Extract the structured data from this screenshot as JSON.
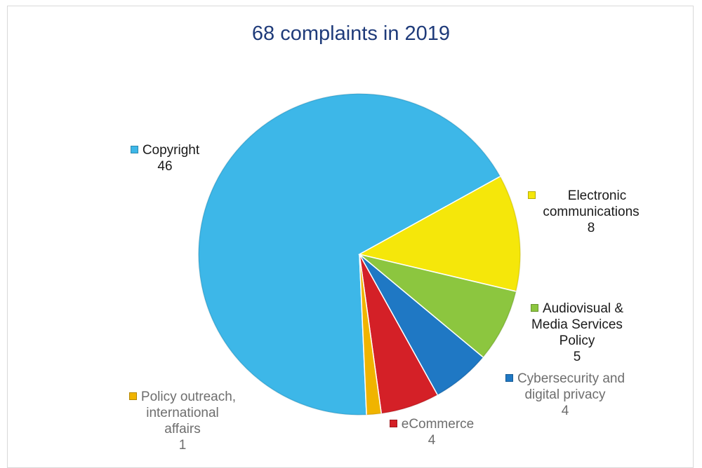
{
  "chart_data": {
    "type": "pie",
    "title": "68 complaints in 2019",
    "slices": [
      {
        "name": "Copyright",
        "value": 46,
        "color": "#3db7e8"
      },
      {
        "name": "Electronic communications",
        "value": 8,
        "color": "#f5e70a"
      },
      {
        "name": "Audiovisual & Media Services Policy",
        "value": 5,
        "color": "#8cc63f"
      },
      {
        "name": "Cybersecurity and digital privacy",
        "value": 4,
        "color": "#1f78c4"
      },
      {
        "name": "eCommerce",
        "value": 4,
        "color": "#d42027"
      },
      {
        "name": "Policy outreach, international affairs",
        "value": 1,
        "color": "#f0b400"
      }
    ],
    "labels": {
      "copyright": {
        "name": "Copyright",
        "value": "46"
      },
      "electronic": {
        "line1": "Electronic",
        "line2": "communications",
        "value": "8"
      },
      "audiovisual": {
        "line1": "Audiovisual &",
        "line2": "Media Services",
        "line3": "Policy",
        "value": "5"
      },
      "cyber": {
        "line1": "Cybersecurity and",
        "line2": "digital privacy",
        "value": "4"
      },
      "ecommerce": {
        "name": "eCommerce",
        "value": "4"
      },
      "policy": {
        "line1": "Policy outreach,",
        "line2": "international",
        "line3": "affairs",
        "value": "1"
      }
    }
  }
}
